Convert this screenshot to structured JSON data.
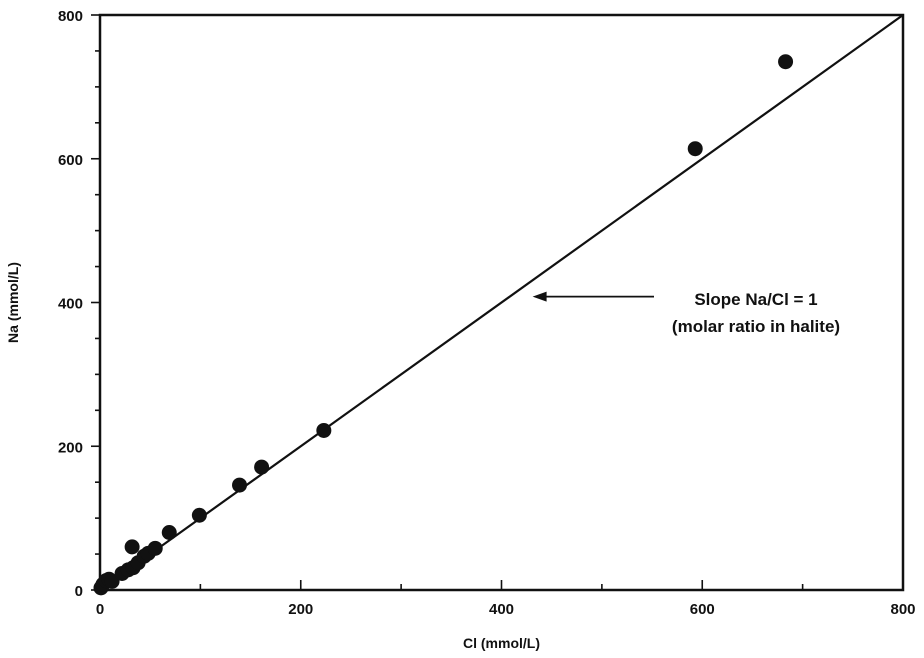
{
  "chart_data": {
    "type": "scatter",
    "title": "",
    "xlabel": "Cl (mmol/L)",
    "ylabel": "Na (mmol/L)",
    "xlim": [
      0,
      800
    ],
    "ylim": [
      0,
      800
    ],
    "x_ticks": [
      0,
      200,
      400,
      600,
      800
    ],
    "y_ticks": [
      0,
      200,
      400,
      600,
      800
    ],
    "grid": false,
    "series": [
      {
        "points": [
          {
            "x": 1,
            "y": 3
          },
          {
            "x": 3,
            "y": 8
          },
          {
            "x": 6,
            "y": 13
          },
          {
            "x": 9,
            "y": 15
          },
          {
            "x": 12,
            "y": 12
          },
          {
            "x": 22,
            "y": 23
          },
          {
            "x": 28,
            "y": 28
          },
          {
            "x": 33,
            "y": 31
          },
          {
            "x": 32,
            "y": 60
          },
          {
            "x": 38,
            "y": 38
          },
          {
            "x": 44,
            "y": 47
          },
          {
            "x": 48,
            "y": 51
          },
          {
            "x": 55,
            "y": 58
          },
          {
            "x": 69,
            "y": 80
          },
          {
            "x": 99,
            "y": 104
          },
          {
            "x": 139,
            "y": 146
          },
          {
            "x": 161,
            "y": 171
          },
          {
            "x": 223,
            "y": 222
          },
          {
            "x": 593,
            "y": 614
          },
          {
            "x": 683,
            "y": 735
          }
        ]
      }
    ],
    "reference_line": {
      "x": [
        0,
        800
      ],
      "y": [
        0,
        800
      ]
    },
    "annotation": {
      "lines": [
        "Slope Na/Cl = 1",
        "(molar ratio in halite)"
      ],
      "arrow_points_to": {
        "x": 425,
        "y": 404
      }
    },
    "colors": {
      "marker": "#111111",
      "line": "#111111",
      "frame": "#111111"
    }
  }
}
